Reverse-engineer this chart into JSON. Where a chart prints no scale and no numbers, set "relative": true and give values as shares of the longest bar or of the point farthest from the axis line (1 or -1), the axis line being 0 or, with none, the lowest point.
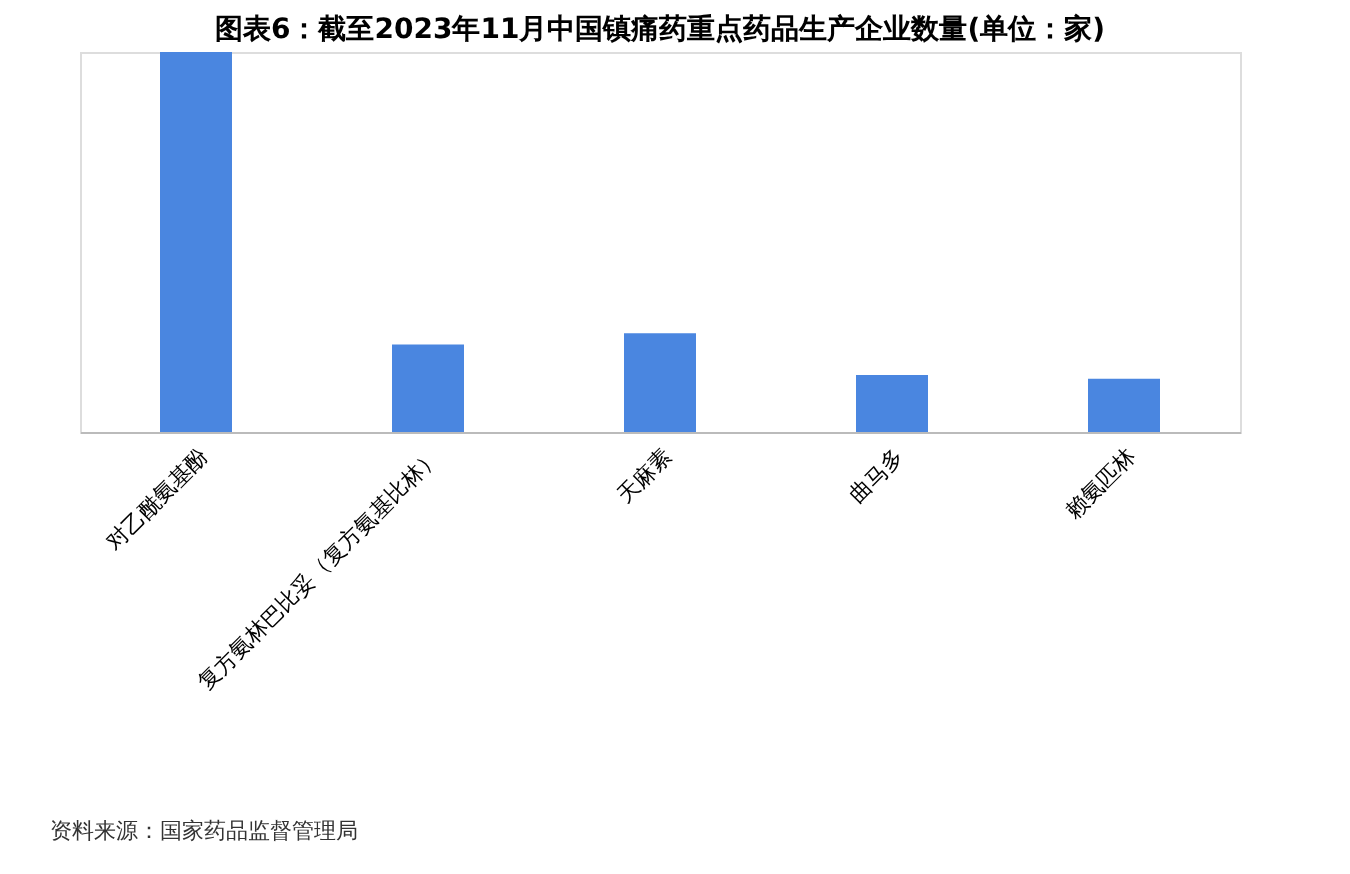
{
  "chart_data": {
    "type": "bar",
    "title": "图表6：截至2023年11月中国镇痛药重点药品生产企业数量(单位：家)",
    "categories": [
      "对乙酰氨基酚",
      "复方氨林巴比妥（复方氨基比林）",
      "天麻素",
      "曲马多",
      "赖氨匹林"
    ],
    "values": [
      1,
      0.23,
      0.26,
      0.15,
      0.14
    ],
    "color": "#4a86e0",
    "relative": true,
    "annotations": [
      "资料来源：国家药品监督管理局"
    ]
  }
}
